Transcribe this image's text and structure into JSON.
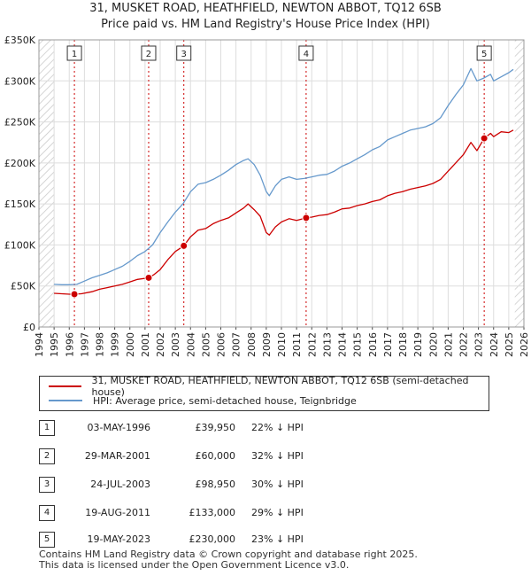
{
  "chart_data": {
    "type": "line",
    "title": "31, MUSKET ROAD, HEATHFIELD, NEWTON ABBOT, TQ12 6SB",
    "subtitle": "Price paid vs. HM Land Registry's House Price Index (HPI)",
    "y_ticks": [
      "£0",
      "£50K",
      "£100K",
      "£150K",
      "£200K",
      "£250K",
      "£300K",
      "£350K"
    ],
    "y_tick_values": [
      0,
      50000,
      100000,
      150000,
      200000,
      250000,
      300000,
      350000
    ],
    "x_ticks": [
      "1994",
      "1995",
      "1996",
      "1997",
      "1998",
      "1999",
      "2000",
      "2001",
      "2002",
      "2003",
      "2004",
      "2005",
      "2006",
      "2007",
      "2008",
      "2009",
      "2010",
      "2011",
      "2012",
      "2013",
      "2014",
      "2015",
      "2016",
      "2017",
      "2018",
      "2019",
      "2020",
      "2021",
      "2022",
      "2023",
      "2024",
      "2025",
      "2026"
    ],
    "xlim": [
      1994,
      2026
    ],
    "ylim": [
      0,
      350000
    ],
    "grid": true,
    "hatched_ranges": [
      [
        1994,
        1995
      ],
      [
        2025.4,
        2026
      ]
    ],
    "series": [
      {
        "name": "31, MUSKET ROAD, HEATHFIELD, NEWTON ABBOT, TQ12 6SB (semi-detached house)",
        "color": "#cc0000",
        "points": [
          [
            1995.0,
            41000
          ],
          [
            1995.5,
            40500
          ],
          [
            1996.0,
            40000
          ],
          [
            1996.34,
            39950
          ],
          [
            1996.8,
            40500
          ],
          [
            1997.5,
            43000
          ],
          [
            1998.0,
            46000
          ],
          [
            1998.5,
            48000
          ],
          [
            1999.0,
            50000
          ],
          [
            1999.5,
            52000
          ],
          [
            2000.0,
            55000
          ],
          [
            2000.5,
            58000
          ],
          [
            2001.24,
            60000
          ],
          [
            2001.6,
            64000
          ],
          [
            2002.0,
            70000
          ],
          [
            2002.5,
            82000
          ],
          [
            2003.0,
            92000
          ],
          [
            2003.56,
            98950
          ],
          [
            2004.0,
            110000
          ],
          [
            2004.5,
            118000
          ],
          [
            2005.0,
            120000
          ],
          [
            2005.5,
            126000
          ],
          [
            2006.0,
            130000
          ],
          [
            2006.5,
            133000
          ],
          [
            2007.0,
            139000
          ],
          [
            2007.5,
            145000
          ],
          [
            2007.8,
            150000
          ],
          [
            2008.2,
            143000
          ],
          [
            2008.6,
            135000
          ],
          [
            2009.0,
            115000
          ],
          [
            2009.2,
            112000
          ],
          [
            2009.6,
            122000
          ],
          [
            2010.0,
            128000
          ],
          [
            2010.5,
            132000
          ],
          [
            2011.0,
            130000
          ],
          [
            2011.63,
            133000
          ],
          [
            2012.0,
            134000
          ],
          [
            2012.5,
            136000
          ],
          [
            2013.0,
            137000
          ],
          [
            2013.5,
            140000
          ],
          [
            2014.0,
            144000
          ],
          [
            2014.5,
            145000
          ],
          [
            2015.0,
            148000
          ],
          [
            2015.5,
            150000
          ],
          [
            2016.0,
            153000
          ],
          [
            2016.5,
            155000
          ],
          [
            2017.0,
            160000
          ],
          [
            2017.5,
            163000
          ],
          [
            2018.0,
            165000
          ],
          [
            2018.5,
            168000
          ],
          [
            2019.0,
            170000
          ],
          [
            2019.5,
            172000
          ],
          [
            2020.0,
            175000
          ],
          [
            2020.5,
            180000
          ],
          [
            2021.0,
            190000
          ],
          [
            2021.5,
            200000
          ],
          [
            2022.0,
            210000
          ],
          [
            2022.5,
            225000
          ],
          [
            2022.9,
            215000
          ],
          [
            2023.38,
            230000
          ],
          [
            2023.8,
            236000
          ],
          [
            2024.0,
            232000
          ],
          [
            2024.5,
            238000
          ],
          [
            2025.0,
            237000
          ],
          [
            2025.3,
            240000
          ]
        ]
      },
      {
        "name": "HPI: Average price, semi-detached house, Teignbridge",
        "color": "#6699cc",
        "points": [
          [
            1995.0,
            52000
          ],
          [
            1995.5,
            51500
          ],
          [
            1996.0,
            51500
          ],
          [
            1996.5,
            52000
          ],
          [
            1997.0,
            56000
          ],
          [
            1997.5,
            60000
          ],
          [
            1998.0,
            63000
          ],
          [
            1998.5,
            66000
          ],
          [
            1999.0,
            70000
          ],
          [
            1999.5,
            74000
          ],
          [
            2000.0,
            80000
          ],
          [
            2000.5,
            87000
          ],
          [
            2001.0,
            92000
          ],
          [
            2001.5,
            100000
          ],
          [
            2002.0,
            115000
          ],
          [
            2002.5,
            128000
          ],
          [
            2003.0,
            140000
          ],
          [
            2003.5,
            150000
          ],
          [
            2004.0,
            165000
          ],
          [
            2004.5,
            174000
          ],
          [
            2005.0,
            176000
          ],
          [
            2005.5,
            180000
          ],
          [
            2006.0,
            185000
          ],
          [
            2006.5,
            191000
          ],
          [
            2007.0,
            198000
          ],
          [
            2007.5,
            203000
          ],
          [
            2007.8,
            205000
          ],
          [
            2008.2,
            198000
          ],
          [
            2008.6,
            185000
          ],
          [
            2009.0,
            165000
          ],
          [
            2009.2,
            160000
          ],
          [
            2009.6,
            172000
          ],
          [
            2010.0,
            180000
          ],
          [
            2010.5,
            183000
          ],
          [
            2011.0,
            180000
          ],
          [
            2011.5,
            181000
          ],
          [
            2012.0,
            183000
          ],
          [
            2012.5,
            185000
          ],
          [
            2013.0,
            186000
          ],
          [
            2013.5,
            190000
          ],
          [
            2014.0,
            196000
          ],
          [
            2014.5,
            200000
          ],
          [
            2015.0,
            205000
          ],
          [
            2015.5,
            210000
          ],
          [
            2016.0,
            216000
          ],
          [
            2016.5,
            220000
          ],
          [
            2017.0,
            228000
          ],
          [
            2017.5,
            232000
          ],
          [
            2018.0,
            236000
          ],
          [
            2018.5,
            240000
          ],
          [
            2019.0,
            242000
          ],
          [
            2019.5,
            244000
          ],
          [
            2020.0,
            248000
          ],
          [
            2020.5,
            255000
          ],
          [
            2021.0,
            270000
          ],
          [
            2021.5,
            283000
          ],
          [
            2022.0,
            295000
          ],
          [
            2022.5,
            315000
          ],
          [
            2022.9,
            300000
          ],
          [
            2023.3,
            303000
          ],
          [
            2023.8,
            308000
          ],
          [
            2024.0,
            300000
          ],
          [
            2024.5,
            305000
          ],
          [
            2025.0,
            310000
          ],
          [
            2025.3,
            314000
          ]
        ]
      }
    ],
    "sales": [
      {
        "num": "1",
        "x": 1996.34,
        "y": 39950
      },
      {
        "num": "2",
        "x": 2001.24,
        "y": 60000
      },
      {
        "num": "3",
        "x": 2003.56,
        "y": 98950
      },
      {
        "num": "4",
        "x": 2011.63,
        "y": 133000
      },
      {
        "num": "5",
        "x": 2023.38,
        "y": 230000
      }
    ]
  },
  "legend": {
    "red_label": "31, MUSKET ROAD, HEATHFIELD, NEWTON ABBOT, TQ12 6SB (semi-detached house)",
    "blue_label": "HPI: Average price, semi-detached house, Teignbridge"
  },
  "transactions": [
    {
      "num": "1",
      "date": "03-MAY-1996",
      "price": "£39,950",
      "hpi": "22% ↓ HPI"
    },
    {
      "num": "2",
      "date": "29-MAR-2001",
      "price": "£60,000",
      "hpi": "32% ↓ HPI"
    },
    {
      "num": "3",
      "date": "24-JUL-2003",
      "price": "£98,950",
      "hpi": "30% ↓ HPI"
    },
    {
      "num": "4",
      "date": "19-AUG-2011",
      "price": "£133,000",
      "hpi": "29% ↓ HPI"
    },
    {
      "num": "5",
      "date": "19-MAY-2023",
      "price": "£230,000",
      "hpi": "23% ↓ HPI"
    }
  ],
  "footer": {
    "line1": "Contains HM Land Registry data © Crown copyright and database right 2025.",
    "line2": "This data is licensed under the Open Government Licence v3.0."
  }
}
